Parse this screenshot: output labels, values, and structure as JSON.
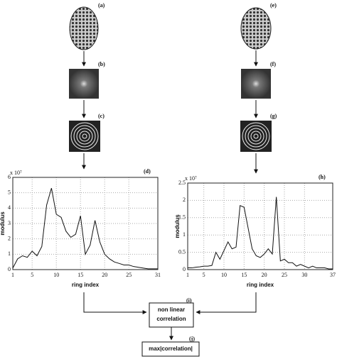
{
  "panels": {
    "a": "(a)",
    "b": "(b)",
    "c": "(c)",
    "e": "(e)",
    "f": "(f)",
    "g": "(g)",
    "i": "(i)",
    "j": "(j)"
  },
  "correlation_box": {
    "lines": [
      "non linear",
      "correlation"
    ]
  },
  "result_box": {
    "text": "max|correlation|"
  },
  "chart_data": [
    {
      "type": "line",
      "panel_label": "(d)",
      "y_multiplier": "x 10⁷",
      "xlabel": "ring index",
      "ylabel": "modulus",
      "grid": true,
      "x": [
        1,
        2,
        3,
        4,
        5,
        6,
        7,
        8,
        9,
        10,
        11,
        12,
        13,
        14,
        15,
        16,
        17,
        18,
        19,
        20,
        21,
        22,
        23,
        24,
        25,
        26,
        27,
        28,
        29,
        30,
        31
      ],
      "series": [
        {
          "color": "#111111",
          "values": [
            0.1,
            0.7,
            0.9,
            0.8,
            1.2,
            0.9,
            1.5,
            4.2,
            5.3,
            3.6,
            3.4,
            2.5,
            2.1,
            2.3,
            3.5,
            1.0,
            1.6,
            3.2,
            1.8,
            1.0,
            0.7,
            0.5,
            0.4,
            0.3,
            0.3,
            0.2,
            0.15,
            0.1,
            0.05,
            0.05,
            0.05
          ]
        }
      ],
      "xlim": [
        1,
        31
      ],
      "ylim": [
        0,
        6
      ],
      "xticks": [
        1,
        5,
        10,
        15,
        20,
        25,
        31
      ],
      "yticks": [
        0,
        1,
        2,
        3,
        4,
        5,
        6
      ]
    },
    {
      "type": "line",
      "panel_label": "(h)",
      "y_multiplier": "x 10⁷",
      "xlabel": "ring index",
      "ylabel": "modulus",
      "grid": true,
      "x": [
        1,
        2,
        3,
        4,
        5,
        6,
        7,
        8,
        9,
        10,
        11,
        12,
        13,
        14,
        15,
        16,
        17,
        18,
        19,
        20,
        21,
        22,
        23,
        24,
        25,
        26,
        27,
        28,
        29,
        30,
        31,
        32,
        33,
        34,
        35,
        36,
        37
      ],
      "series": [
        {
          "color": "#111111",
          "values": [
            0.05,
            0.05,
            0.07,
            0.08,
            0.1,
            0.1,
            0.12,
            0.5,
            0.3,
            0.55,
            0.8,
            0.6,
            0.65,
            1.85,
            1.8,
            1.2,
            0.6,
            0.4,
            0.35,
            0.45,
            0.6,
            0.45,
            2.1,
            0.25,
            0.3,
            0.2,
            0.2,
            0.1,
            0.15,
            0.1,
            0.05,
            0.1,
            0.05,
            0.05,
            0.05,
            0.02,
            0.02
          ]
        }
      ],
      "xlim": [
        1,
        37
      ],
      "ylim": [
        0,
        2.5
      ],
      "xticks": [
        1,
        5,
        10,
        15,
        20,
        25,
        30,
        37
      ],
      "yticks": [
        0,
        0.5,
        1,
        1.5,
        2,
        2.5
      ]
    }
  ]
}
